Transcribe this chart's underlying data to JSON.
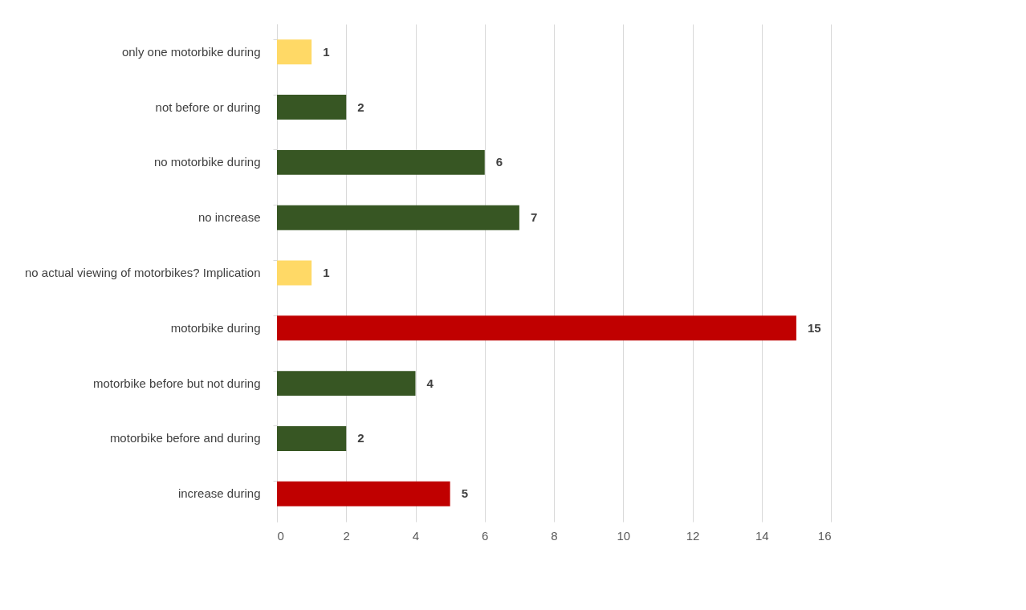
{
  "chart_data": {
    "type": "bar",
    "orientation": "horizontal",
    "categories": [
      "only one motorbike during",
      "not before or during",
      "no motorbike during",
      "no increase",
      "no actual viewing of motorbikes? Implication",
      "motorbike during",
      "motorbike before but not during",
      "motorbike before and during",
      "increase during"
    ],
    "values": [
      1,
      2,
      6,
      7,
      1,
      15,
      4,
      2,
      5
    ],
    "colors": [
      "#ffd966",
      "#375623",
      "#375623",
      "#375623",
      "#ffd966",
      "#c00000",
      "#375623",
      "#375623",
      "#c00000"
    ],
    "xlim": [
      0,
      16
    ],
    "xticks": [
      0,
      2,
      4,
      6,
      8,
      10,
      12,
      14,
      16
    ],
    "grid": "x",
    "data_labels": true
  }
}
